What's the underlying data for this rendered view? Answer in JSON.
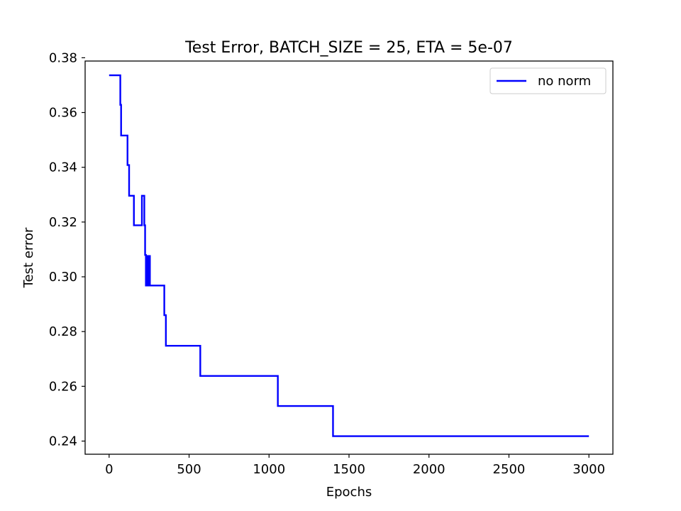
{
  "chart_data": {
    "type": "line",
    "title": "Test Error, BATCH_SIZE = 25, ETA = 5e-07",
    "xlabel": "Epochs",
    "ylabel": "Test error",
    "xlim": [
      -150,
      3150
    ],
    "ylim": [
      0.2352,
      0.3788
    ],
    "xticks": [
      0,
      500,
      1000,
      1500,
      2000,
      2500,
      3000
    ],
    "xtick_labels": [
      "0",
      "500",
      "1000",
      "1500",
      "2000",
      "2500",
      "3000"
    ],
    "yticks": [
      0.24,
      0.26,
      0.28,
      0.3,
      0.32,
      0.34,
      0.36,
      0.38
    ],
    "ytick_labels": [
      "0.24",
      "0.26",
      "0.28",
      "0.30",
      "0.32",
      "0.34",
      "0.36",
      "0.38"
    ],
    "grid": false,
    "legend_position": "top-right",
    "series": [
      {
        "name": "no norm",
        "color": "#0000ff",
        "step": "post",
        "x": [
          0,
          70,
          75,
          85,
          115,
          125,
          135,
          155,
          205,
          220,
          225,
          230,
          235,
          240,
          245,
          255,
          345,
          355,
          365,
          570,
          1055,
          1400,
          3000
        ],
        "y": [
          0.3736,
          0.3628,
          0.3516,
          0.3516,
          0.3408,
          0.3296,
          0.3296,
          0.3188,
          0.3296,
          0.3188,
          0.308,
          0.2968,
          0.3076,
          0.2968,
          0.3076,
          0.2968,
          0.286,
          0.2748,
          0.2748,
          0.2638,
          0.2528,
          0.2418,
          0.2418
        ]
      }
    ]
  }
}
